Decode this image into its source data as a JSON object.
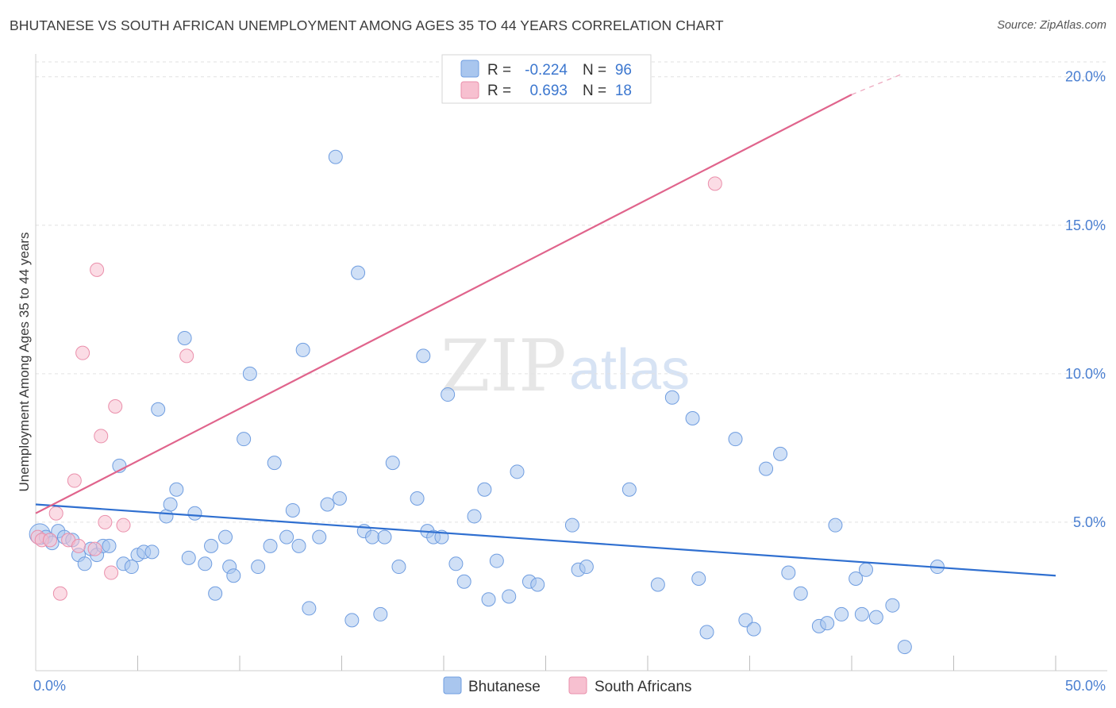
{
  "chart_data": {
    "type": "scatter",
    "title": "BHUTANESE VS SOUTH AFRICAN UNEMPLOYMENT AMONG AGES 35 TO 44 YEARS CORRELATION CHART",
    "source": "Source: ZipAtlas.com",
    "xlabel": "",
    "ylabel": "Unemployment Among Ages 35 to 44 years",
    "xlim": [
      0,
      50
    ],
    "ylim": [
      0,
      20.5
    ],
    "x_tick_labels": [
      "0.0%",
      "50.0%"
    ],
    "y_ticks": [
      5,
      10,
      15,
      20
    ],
    "y_tick_labels": [
      "5.0%",
      "10.0%",
      "15.0%",
      "20.0%"
    ],
    "grid": true,
    "watermark": {
      "zip": "ZIP",
      "atlas": "atlas"
    },
    "legend_stats": [
      {
        "r_label": "R =",
        "r_value": "-0.224",
        "n_label": "N =",
        "n_value": "96"
      },
      {
        "r_label": "R =",
        "r_value": "0.693",
        "n_label": "N =",
        "n_value": "18"
      }
    ],
    "series": [
      {
        "name": "Bhutanese",
        "color": "#a9c6ee",
        "stroke": "#6f9de0",
        "trend_color": "#2f6fd0",
        "trend": {
          "x": [
            0,
            50
          ],
          "y": [
            5.6,
            3.2
          ]
        },
        "points": [
          [
            0.2,
            4.6
          ],
          [
            0.5,
            4.5
          ],
          [
            0.8,
            4.3
          ],
          [
            1.1,
            4.7
          ],
          [
            1.4,
            4.5
          ],
          [
            1.8,
            4.4
          ],
          [
            2.1,
            3.9
          ],
          [
            2.4,
            3.6
          ],
          [
            2.7,
            4.1
          ],
          [
            3.0,
            3.9
          ],
          [
            3.3,
            4.2
          ],
          [
            3.6,
            4.2
          ],
          [
            4.1,
            6.9
          ],
          [
            4.3,
            3.6
          ],
          [
            4.7,
            3.5
          ],
          [
            5.0,
            3.9
          ],
          [
            5.3,
            4.0
          ],
          [
            5.7,
            4.0
          ],
          [
            6.0,
            8.8
          ],
          [
            6.4,
            5.2
          ],
          [
            6.6,
            5.6
          ],
          [
            6.9,
            6.1
          ],
          [
            7.3,
            11.2
          ],
          [
            7.5,
            3.8
          ],
          [
            7.8,
            5.3
          ],
          [
            8.3,
            3.6
          ],
          [
            8.6,
            4.2
          ],
          [
            8.8,
            2.6
          ],
          [
            9.3,
            4.5
          ],
          [
            9.5,
            3.5
          ],
          [
            9.7,
            3.2
          ],
          [
            10.2,
            7.8
          ],
          [
            10.5,
            10.0
          ],
          [
            10.9,
            3.5
          ],
          [
            11.5,
            4.2
          ],
          [
            11.7,
            7.0
          ],
          [
            12.3,
            4.5
          ],
          [
            12.6,
            5.4
          ],
          [
            12.9,
            4.2
          ],
          [
            13.1,
            10.8
          ],
          [
            13.4,
            2.1
          ],
          [
            13.9,
            4.5
          ],
          [
            14.3,
            5.6
          ],
          [
            14.7,
            17.3
          ],
          [
            14.9,
            5.8
          ],
          [
            15.5,
            1.7
          ],
          [
            15.8,
            13.4
          ],
          [
            16.1,
            4.7
          ],
          [
            16.5,
            4.5
          ],
          [
            16.9,
            1.9
          ],
          [
            17.1,
            4.5
          ],
          [
            17.5,
            7.0
          ],
          [
            17.8,
            3.5
          ],
          [
            18.7,
            5.8
          ],
          [
            19.0,
            10.6
          ],
          [
            19.2,
            4.7
          ],
          [
            19.5,
            4.5
          ],
          [
            19.9,
            4.5
          ],
          [
            20.2,
            9.3
          ],
          [
            20.6,
            3.6
          ],
          [
            21.0,
            3.0
          ],
          [
            21.5,
            5.2
          ],
          [
            22.0,
            6.1
          ],
          [
            22.2,
            2.4
          ],
          [
            22.6,
            3.7
          ],
          [
            23.2,
            2.5
          ],
          [
            23.6,
            6.7
          ],
          [
            24.2,
            3.0
          ],
          [
            24.6,
            2.9
          ],
          [
            26.3,
            4.9
          ],
          [
            26.6,
            3.4
          ],
          [
            27.0,
            3.5
          ],
          [
            29.1,
            6.1
          ],
          [
            30.5,
            2.9
          ],
          [
            31.2,
            9.2
          ],
          [
            32.2,
            8.5
          ],
          [
            32.5,
            3.1
          ],
          [
            32.9,
            1.3
          ],
          [
            34.3,
            7.8
          ],
          [
            34.8,
            1.7
          ],
          [
            35.2,
            1.4
          ],
          [
            35.8,
            6.8
          ],
          [
            36.5,
            7.3
          ],
          [
            36.9,
            3.3
          ],
          [
            37.5,
            2.6
          ],
          [
            38.4,
            1.5
          ],
          [
            38.8,
            1.6
          ],
          [
            39.2,
            4.9
          ],
          [
            39.5,
            1.9
          ],
          [
            40.2,
            3.1
          ],
          [
            40.5,
            1.9
          ],
          [
            40.7,
            3.4
          ],
          [
            41.2,
            1.8
          ],
          [
            42.0,
            2.2
          ],
          [
            42.6,
            0.8
          ],
          [
            44.2,
            3.5
          ]
        ]
      },
      {
        "name": "South Africans",
        "color": "#f7c0d0",
        "stroke": "#ea8fab",
        "trend_color": "#e0648c",
        "trend": {
          "x": [
            0,
            40
          ],
          "y": [
            5.3,
            19.4
          ]
        },
        "trend_dashed": {
          "x": [
            40,
            42.5
          ],
          "y": [
            19.4,
            20.1
          ]
        },
        "points": [
          [
            0.1,
            4.5
          ],
          [
            0.3,
            4.4
          ],
          [
            0.7,
            4.4
          ],
          [
            1.0,
            5.3
          ],
          [
            1.2,
            2.6
          ],
          [
            1.6,
            4.4
          ],
          [
            1.9,
            6.4
          ],
          [
            2.1,
            4.2
          ],
          [
            2.3,
            10.7
          ],
          [
            2.9,
            4.1
          ],
          [
            3.0,
            13.5
          ],
          [
            3.2,
            7.9
          ],
          [
            3.4,
            5.0
          ],
          [
            3.7,
            3.3
          ],
          [
            3.9,
            8.9
          ],
          [
            4.3,
            4.9
          ],
          [
            7.4,
            10.6
          ],
          [
            33.3,
            16.4
          ]
        ]
      }
    ]
  }
}
